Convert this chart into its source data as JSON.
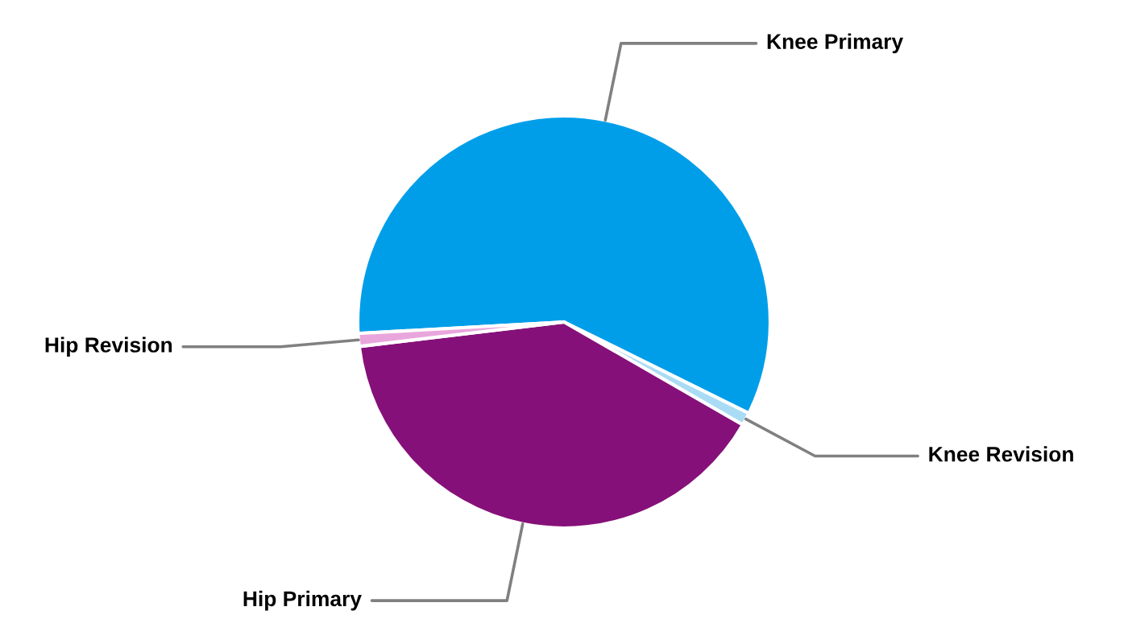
{
  "chart_data": {
    "type": "pie",
    "categories": [
      "Knee Primary",
      "Knee Revision",
      "Hip Primary",
      "Hip Revision"
    ],
    "values": [
      58.2,
      1.0,
      39.8,
      1.0
    ],
    "colors": [
      "#009ee9",
      "#a9dcf4",
      "#861079",
      "#e9a6dc"
    ],
    "legend": false
  }
}
